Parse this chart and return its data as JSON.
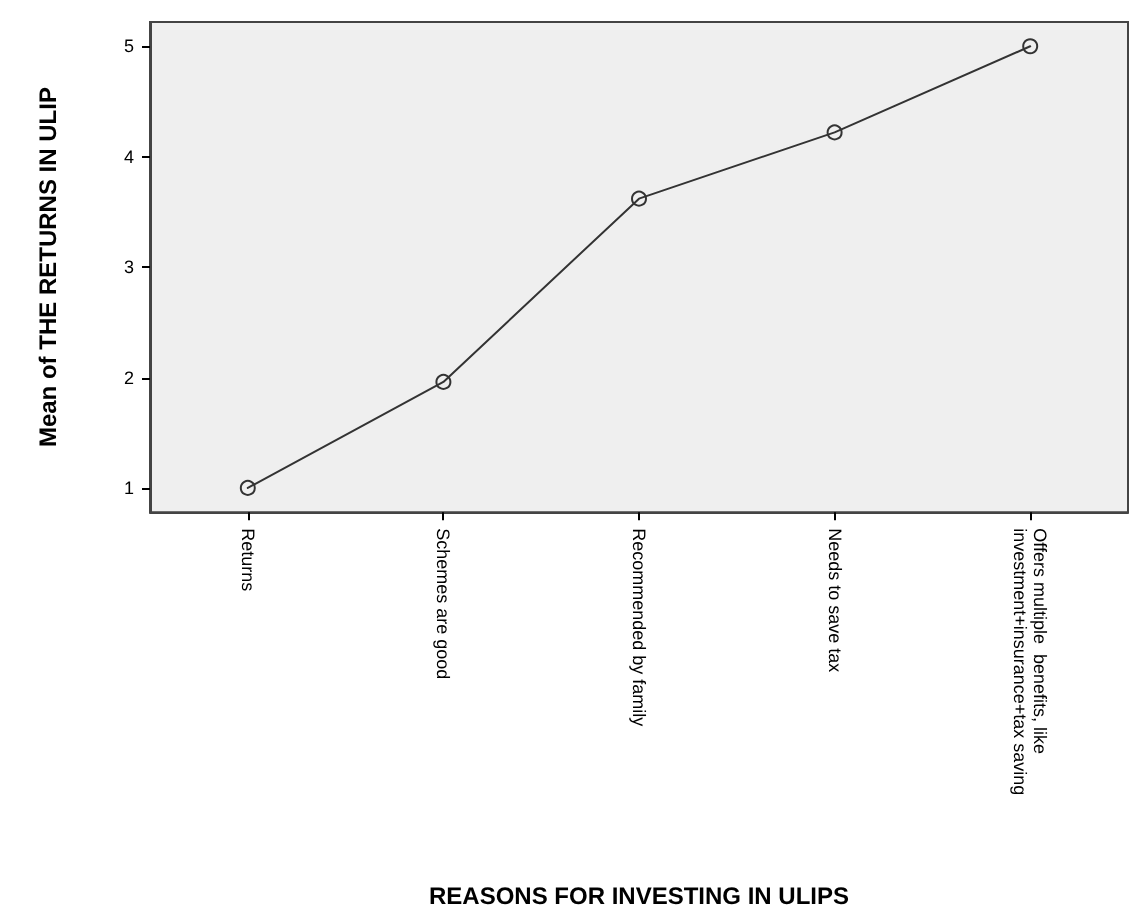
{
  "chart_data": {
    "type": "line",
    "xlabel": "REASONS FOR INVESTING IN ULIPS",
    "ylabel": "Mean of THE RETURNS IN ULIP",
    "categories": [
      "Returns",
      "Schemes are good",
      "Recommended by family",
      "Needs to save tax",
      "Offers multiple  benefits, like investment+insurance+tax saving"
    ],
    "values": [
      1,
      1.96,
      3.62,
      4.22,
      5
    ],
    "color": "#333333",
    "ylim": [
      0.78,
      5.22
    ],
    "yticks": [
      1,
      2,
      3,
      4,
      5
    ],
    "grid": false,
    "marker": "circle",
    "line_style": "solid"
  }
}
